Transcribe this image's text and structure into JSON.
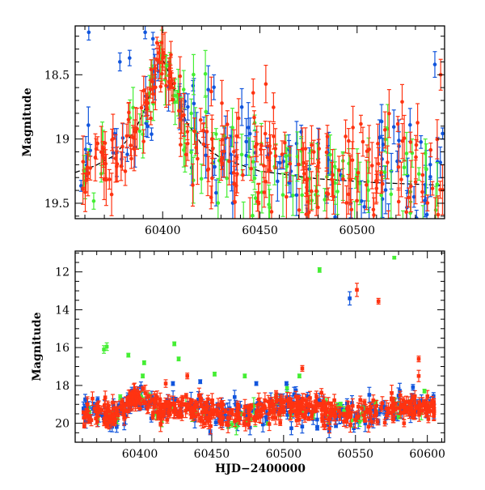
{
  "chart_data": [
    {
      "type": "scatter",
      "panel": "top",
      "xlabel": "",
      "ylabel": "Magnitude",
      "xlim": [
        60355,
        60545
      ],
      "ylim": [
        19.62,
        18.12
      ],
      "y_inverted": true,
      "xticks": [
        60400,
        60450,
        60500
      ],
      "yticks": [
        18.5,
        19,
        19.5
      ],
      "y_minor_step": 0.1,
      "x_minor_step": 10,
      "model_curve": {
        "name": "",
        "style": "dashed",
        "color": "#000000",
        "x": [
          60355,
          60365,
          60375,
          60385,
          60390,
          60395,
          60398,
          60400,
          60403,
          60407,
          60412,
          60420,
          60430,
          60450,
          60480,
          60510,
          60545
        ],
        "y": [
          19.26,
          19.21,
          19.13,
          18.95,
          18.8,
          18.58,
          18.42,
          18.38,
          18.48,
          18.66,
          18.86,
          19.04,
          19.15,
          19.25,
          19.31,
          19.34,
          19.36
        ]
      },
      "series": [
        {
          "name": "",
          "color": "#1155dd",
          "role": "blue"
        },
        {
          "name": "",
          "color": "#44ee33",
          "role": "green"
        },
        {
          "name": "",
          "color": "#ff3311",
          "role": "red"
        }
      ],
      "highlight_points": [
        {
          "series": 0,
          "x": 60362,
          "y": 18.17,
          "err": 0.06
        },
        {
          "series": 0,
          "x": 60378,
          "y": 18.4,
          "err": 0.07
        },
        {
          "series": 0,
          "x": 60383,
          "y": 18.37,
          "err": 0.06
        },
        {
          "series": 0,
          "x": 60391,
          "y": 18.17,
          "err": 0.05
        },
        {
          "series": 0,
          "x": 60395,
          "y": 18.22,
          "err": 0.05
        },
        {
          "series": 2,
          "x": 60398,
          "y": 18.33,
          "err": 0.08
        },
        {
          "series": 2,
          "x": 60400,
          "y": 18.37,
          "err": 0.07
        },
        {
          "series": 2,
          "x": 60396,
          "y": 18.45,
          "err": 0.08
        },
        {
          "series": 1,
          "x": 60402,
          "y": 18.43,
          "err": 0.08
        },
        {
          "series": 0,
          "x": 60540,
          "y": 18.42,
          "err": 0.1
        },
        {
          "series": 2,
          "x": 60543,
          "y": 18.5,
          "err": 0.12
        }
      ]
    },
    {
      "type": "scatter",
      "panel": "bottom",
      "xlabel": "HJD−2400000",
      "ylabel": "Magnitude",
      "xlim": [
        60355,
        60612
      ],
      "ylim": [
        21.0,
        10.9
      ],
      "y_inverted": true,
      "xticks": [
        60400,
        60450,
        60500,
        60550,
        60600
      ],
      "yticks": [
        12,
        14,
        16,
        18,
        20
      ],
      "y_minor_step": 0.5,
      "x_minor_step": 10,
      "series": [
        {
          "name": "",
          "color": "#1155dd",
          "role": "blue"
        },
        {
          "name": "",
          "color": "#44ee33",
          "role": "green"
        },
        {
          "name": "",
          "color": "#ff3311",
          "role": "red"
        }
      ],
      "outliers": [
        {
          "series": 1,
          "x": 60375,
          "y": 16.1,
          "err": 0.2
        },
        {
          "series": 1,
          "x": 60377,
          "y": 15.95,
          "err": 0.2
        },
        {
          "series": 1,
          "x": 60392,
          "y": 16.4,
          "err": 0.1
        },
        {
          "series": 1,
          "x": 60403,
          "y": 16.8,
          "err": 0.1
        },
        {
          "series": 1,
          "x": 60402,
          "y": 17.5,
          "err": 0.1
        },
        {
          "series": 1,
          "x": 60424,
          "y": 15.8,
          "err": 0.1
        },
        {
          "series": 1,
          "x": 60427,
          "y": 16.6,
          "err": 0.1
        },
        {
          "series": 2,
          "x": 60433,
          "y": 17.5,
          "err": 0.15
        },
        {
          "series": 0,
          "x": 60442,
          "y": 17.8,
          "err": 0.1
        },
        {
          "series": 1,
          "x": 60452,
          "y": 17.4,
          "err": 0.1
        },
        {
          "series": 1,
          "x": 60473,
          "y": 17.5,
          "err": 0.1
        },
        {
          "series": 1,
          "x": 60511,
          "y": 17.5,
          "err": 0.1
        },
        {
          "series": 2,
          "x": 60513,
          "y": 17.1,
          "err": 0.15
        },
        {
          "series": 1,
          "x": 60525,
          "y": 11.9,
          "err": 0.12
        },
        {
          "series": 0,
          "x": 60546,
          "y": 13.4,
          "err": 0.35
        },
        {
          "series": 2,
          "x": 60551,
          "y": 12.95,
          "err": 0.35
        },
        {
          "series": 2,
          "x": 60566,
          "y": 13.55,
          "err": 0.15
        },
        {
          "series": 1,
          "x": 60577,
          "y": 11.25,
          "err": 0.06
        },
        {
          "series": 2,
          "x": 60594,
          "y": 16.6,
          "err": 0.15
        },
        {
          "series": 2,
          "x": 60594,
          "y": 17.5,
          "err": 0.3
        },
        {
          "series": 0,
          "x": 60590,
          "y": 18.1,
          "err": 0.15
        },
        {
          "series": 1,
          "x": 60598,
          "y": 18.3,
          "err": 0.1
        },
        {
          "series": 0,
          "x": 60481,
          "y": 17.9,
          "err": 0.1
        },
        {
          "series": 0,
          "x": 60502,
          "y": 17.9,
          "err": 0.1
        },
        {
          "series": 2,
          "x": 60418,
          "y": 17.9,
          "err": 0.2
        },
        {
          "series": 0,
          "x": 60423,
          "y": 17.9,
          "err": 0.1
        }
      ]
    }
  ]
}
